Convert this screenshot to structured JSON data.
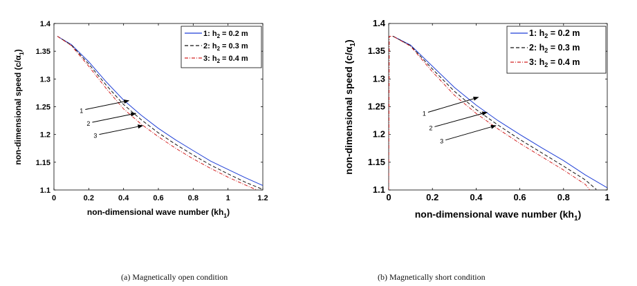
{
  "figure": {
    "captions": [
      "(a)  Magnetically open condition",
      "(b)  Magnetically short condition"
    ]
  },
  "chart_data": [
    {
      "type": "line",
      "panel": "(a)",
      "caption": "(a)  Magnetically open condition",
      "xlabel": "non-dimensional wave number (kh",
      "xlabel_sub": "1",
      "xlabel_close": ")",
      "ylabel": "non-dimensional speed (c/α",
      "ylabel_sub": "1",
      "ylabel_close": ")",
      "xlim": [
        0,
        1.2
      ],
      "ylim": [
        1.1,
        1.4
      ],
      "xticks": [
        0,
        0.2,
        0.4,
        0.6,
        0.8,
        1,
        1.2
      ],
      "xtick_labels": [
        "0",
        "0.2",
        "0.4",
        "0.6",
        "0.8",
        "1",
        "1.2"
      ],
      "yticks": [
        1.1,
        1.15,
        1.2,
        1.25,
        1.3,
        1.35,
        1.4
      ],
      "ytick_labels": [
        "1.1",
        "1.15",
        "1.2",
        "1.25",
        "1.3",
        "1.35",
        "1.4"
      ],
      "legend_position": "top-right",
      "series": [
        {
          "name": "1: h",
          "sub": "2",
          "rest": " = 0.2 m",
          "color": "#1f3fd6",
          "dash": "",
          "x": [
            0.02,
            0.1,
            0.2,
            0.3,
            0.4,
            0.5,
            0.6,
            0.7,
            0.8,
            0.9,
            1.0,
            1.1,
            1.2
          ],
          "y": [
            1.377,
            1.362,
            1.331,
            1.295,
            1.262,
            1.235,
            1.211,
            1.19,
            1.171,
            1.152,
            1.137,
            1.122,
            1.108
          ]
        },
        {
          "name": "2: h",
          "sub": "2",
          "rest": " = 0.3 m",
          "color": "#111111",
          "dash": "5,3",
          "x": [
            0.02,
            0.1,
            0.2,
            0.3,
            0.4,
            0.5,
            0.6,
            0.7,
            0.8,
            0.9,
            1.0,
            1.1,
            1.2
          ],
          "y": [
            1.377,
            1.361,
            1.327,
            1.289,
            1.254,
            1.227,
            1.203,
            1.182,
            1.163,
            1.145,
            1.129,
            1.114,
            1.101
          ]
        },
        {
          "name": "3: h",
          "sub": "2",
          "rest": " = 0.4 m",
          "color": "#d42020",
          "dash": "5,2,1,2",
          "x": [
            0.02,
            0.1,
            0.2,
            0.3,
            0.4,
            0.5,
            0.6,
            0.7,
            0.8,
            0.9,
            1.0,
            1.1,
            1.18
          ],
          "y": [
            1.377,
            1.36,
            1.323,
            1.283,
            1.246,
            1.219,
            1.196,
            1.175,
            1.156,
            1.139,
            1.123,
            1.109,
            1.098
          ]
        }
      ],
      "annotations": [
        {
          "label": "1",
          "from": [
            0.18,
            1.245
          ],
          "to": [
            0.43,
            1.261
          ]
        },
        {
          "label": "2",
          "from": [
            0.22,
            1.222
          ],
          "to": [
            0.47,
            1.238
          ]
        },
        {
          "label": "3",
          "from": [
            0.26,
            1.2
          ],
          "to": [
            0.51,
            1.216
          ]
        }
      ]
    },
    {
      "type": "line",
      "panel": "(b)",
      "caption": "(b)  Magnetically short condition",
      "xlabel": "non-dimensional wave number (kh",
      "xlabel_sub": "1",
      "xlabel_close": ")",
      "ylabel": "non-dimensional speed (c/α",
      "ylabel_sub": "1",
      "ylabel_close": ")",
      "xlim": [
        0,
        1
      ],
      "ylim": [
        1.1,
        1.4
      ],
      "xticks": [
        0,
        0.2,
        0.4,
        0.6,
        0.8,
        1
      ],
      "xtick_labels": [
        "0",
        "0.2",
        "0.4",
        "0.6",
        "0.8",
        "1"
      ],
      "yticks": [
        1.1,
        1.15,
        1.2,
        1.25,
        1.3,
        1.35,
        1.4
      ],
      "ytick_labels": [
        "1.1",
        "1.15",
        "1.2",
        "1.25",
        "1.3",
        "1.35",
        "1.4"
      ],
      "legend_position": "top-right",
      "series": [
        {
          "name": "1: h",
          "sub": "2",
          "rest": " = 0.2 m",
          "color": "#1f3fd6",
          "dash": "",
          "x": [
            0.02,
            0.1,
            0.2,
            0.3,
            0.4,
            0.5,
            0.6,
            0.7,
            0.8,
            0.9,
            1.0
          ],
          "y": [
            1.377,
            1.361,
            1.323,
            1.285,
            1.253,
            1.225,
            1.2,
            1.176,
            1.153,
            1.127,
            1.104
          ]
        },
        {
          "name": "2: h",
          "sub": "2",
          "rest": " = 0.3 m",
          "color": "#111111",
          "dash": "5,3",
          "x": [
            0.02,
            0.1,
            0.2,
            0.3,
            0.4,
            0.5,
            0.6,
            0.7,
            0.8,
            0.9,
            0.95
          ],
          "y": [
            1.377,
            1.36,
            1.318,
            1.278,
            1.245,
            1.217,
            1.191,
            1.167,
            1.143,
            1.118,
            1.101
          ]
        },
        {
          "name": "3: h",
          "sub": "2",
          "rest": " = 0.4 m",
          "color": "#d42020",
          "dash": "5,2,1,2",
          "x": [
            0.0,
            0.003,
            0.02,
            0.1,
            0.2,
            0.3,
            0.4,
            0.5,
            0.6,
            0.7,
            0.8,
            0.9,
            0.92
          ],
          "y": [
            1.1,
            1.377,
            1.377,
            1.359,
            1.313,
            1.271,
            1.238,
            1.21,
            1.184,
            1.16,
            1.136,
            1.11,
            1.1
          ]
        }
      ],
      "annotations": [
        {
          "label": "1",
          "from": [
            0.18,
            1.24
          ],
          "to": [
            0.41,
            1.267
          ]
        },
        {
          "label": "2",
          "from": [
            0.21,
            1.214
          ],
          "to": [
            0.45,
            1.24
          ]
        },
        {
          "label": "3",
          "from": [
            0.26,
            1.19
          ],
          "to": [
            0.49,
            1.216
          ]
        }
      ]
    }
  ]
}
